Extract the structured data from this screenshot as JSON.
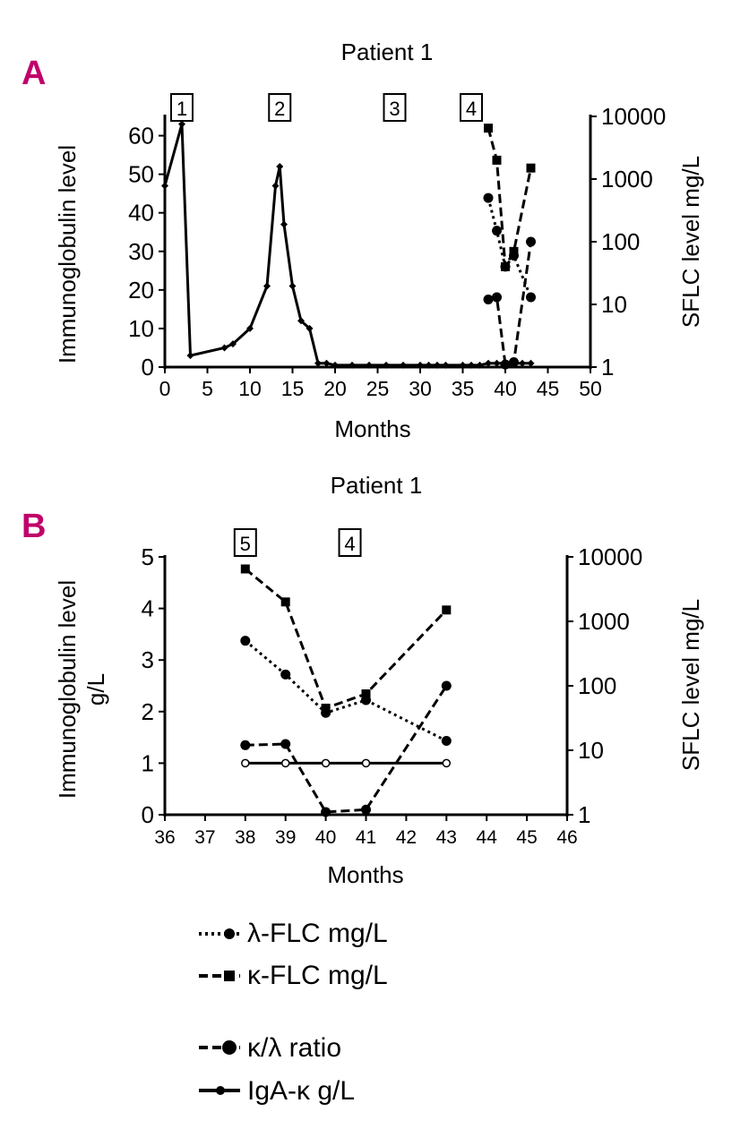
{
  "colors": {
    "panel_letter": "#c0006a",
    "ink": "#000000",
    "background": "#ffffff"
  },
  "legend": [
    {
      "label": "λ-FLC mg/L",
      "style": "dotted-circle"
    },
    {
      "label": "κ-FLC mg/L",
      "style": "dashed-square"
    },
    {
      "label": "κ/λ ratio",
      "style": "dashed-circle"
    },
    {
      "label": "IgA-κ g/L",
      "style": "solid-circle"
    }
  ],
  "chart_data": [
    {
      "panel": "A",
      "type": "line",
      "title": "Patient 1",
      "xlabel": "Months",
      "ylabel": "Immunoglobulin level",
      "y2label": "SFLC level mg/L",
      "xlim": [
        0,
        50
      ],
      "ylim": [
        0,
        65
      ],
      "y2lim": [
        1,
        10000
      ],
      "y2scale": "log",
      "xticks": [
        0,
        5,
        10,
        15,
        20,
        25,
        30,
        35,
        40,
        45,
        50
      ],
      "yticks": [
        0,
        10,
        20,
        30,
        40,
        50,
        60
      ],
      "y2ticks": [
        1,
        10,
        100,
        1000,
        10000
      ],
      "annotations": [
        {
          "label": "1",
          "x": 2
        },
        {
          "label": "2",
          "x": 13.5
        },
        {
          "label": "3",
          "x": 27
        },
        {
          "label": "4",
          "x": 36
        }
      ],
      "series": [
        {
          "name": "IgA-κ g/L",
          "axis": "left",
          "marker": "diamond",
          "dash": "solid",
          "x": [
            0,
            2,
            3,
            7,
            8,
            10,
            12,
            13,
            13.5,
            14,
            15,
            16,
            17,
            18,
            19,
            20,
            22,
            24,
            26,
            28,
            30,
            31,
            32,
            33,
            35,
            36,
            37,
            38,
            39,
            40,
            41,
            42,
            43
          ],
          "y": [
            47,
            63,
            3,
            5,
            6,
            10,
            21,
            47,
            52,
            37,
            21,
            12,
            10,
            1,
            1,
            0.5,
            0.5,
            0.5,
            0.5,
            0.5,
            0.5,
            0.5,
            0.5,
            0.5,
            0.5,
            0.5,
            0.5,
            1,
            1,
            1,
            1,
            1,
            1
          ]
        },
        {
          "name": "κ-FLC mg/L",
          "axis": "right",
          "marker": "square",
          "dash": "dashed",
          "x": [
            38,
            39,
            40,
            41,
            43
          ],
          "y": [
            6500,
            2000,
            40,
            70,
            1500
          ]
        },
        {
          "name": "λ-FLC mg/L",
          "axis": "right",
          "marker": "circle",
          "dash": "dotted",
          "x": [
            38,
            39,
            40,
            41,
            43
          ],
          "y": [
            500,
            150,
            40,
            60,
            13
          ]
        },
        {
          "name": "κ/λ ratio",
          "axis": "right",
          "marker": "circle",
          "dash": "dashed",
          "x": [
            38,
            39,
            40,
            41,
            43
          ],
          "y": [
            12,
            13,
            1.1,
            1.2,
            100
          ]
        }
      ]
    },
    {
      "panel": "B",
      "type": "line",
      "title": "Patient 1",
      "xlabel": "Months",
      "ylabel": "Immunoglobulin level g/L",
      "ylabel_lines": [
        "Immunoglobulin level",
        "g/L"
      ],
      "y2label": "SFLC level mg/L",
      "xlim": [
        36,
        46
      ],
      "ylim": [
        0,
        5
      ],
      "y2lim": [
        1,
        10000
      ],
      "y2scale": "log",
      "xticks": [
        36,
        37,
        38,
        39,
        40,
        41,
        42,
        43,
        44,
        45,
        46
      ],
      "yticks": [
        0,
        1,
        2,
        3,
        4,
        5
      ],
      "y2ticks": [
        1,
        10,
        100,
        1000,
        10000
      ],
      "annotations": [
        {
          "label": "5",
          "x": 38
        },
        {
          "label": "4",
          "x": 40.6
        }
      ],
      "series": [
        {
          "name": "κ-FLC mg/L",
          "axis": "right",
          "marker": "square",
          "dash": "dashed",
          "x": [
            38,
            39,
            40,
            41,
            43
          ],
          "y": [
            6500,
            2000,
            45,
            75,
            1500
          ]
        },
        {
          "name": "λ-FLC mg/L",
          "axis": "right",
          "marker": "circle",
          "dash": "dotted",
          "x": [
            38,
            39,
            40,
            41,
            43
          ],
          "y": [
            500,
            150,
            38,
            60,
            14
          ]
        },
        {
          "name": "κ/λ ratio",
          "axis": "right",
          "marker": "circle",
          "dash": "dashed",
          "x": [
            38,
            39,
            40,
            41,
            43
          ],
          "y": [
            12,
            12.5,
            1.1,
            1.2,
            100
          ]
        },
        {
          "name": "IgA-κ g/L",
          "axis": "left",
          "marker": "open-circle",
          "dash": "solid",
          "x": [
            38,
            39,
            40,
            41,
            43
          ],
          "y": [
            1,
            1,
            1,
            1,
            1
          ]
        }
      ]
    }
  ]
}
